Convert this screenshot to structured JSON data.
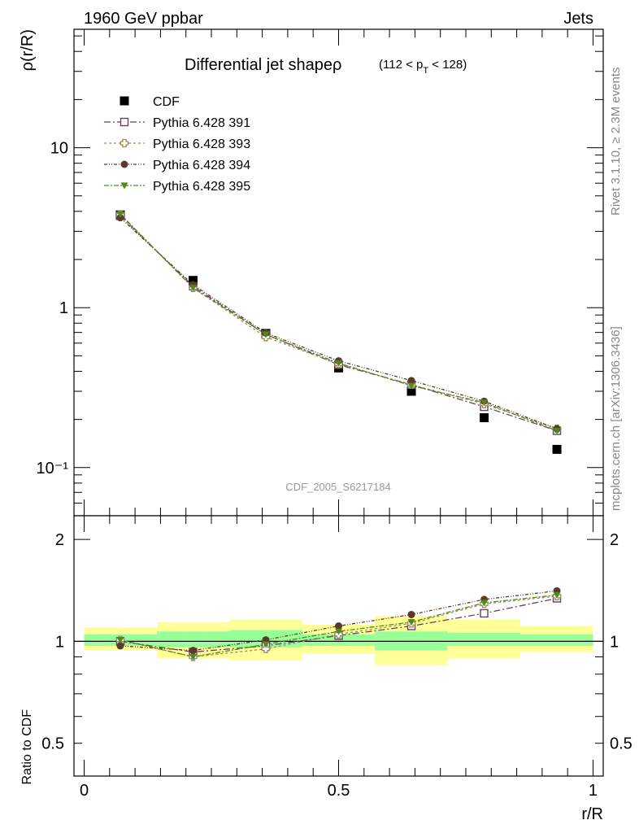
{
  "header": {
    "energy": "1960 GeV ppbar",
    "process": "Jets",
    "side_top": "Rivet 3.1.10, ≥ 2.3M events",
    "side_bottom": "mcplots.cern.ch [arXiv:1306.3436]"
  },
  "colors": {
    "cdf": "#000000",
    "p391": "#6b3f5a",
    "p393": "#9c8a5a",
    "p394": "#5a3a28",
    "p395": "#4e8a1e",
    "band_outer": "#ffff99",
    "band_inner": "#99ff99"
  },
  "chart_data": [
    {
      "type": "scatter",
      "title": "Differential jet shapeρ",
      "title_cut": "(112 < p",
      "title_cut_sub": "T",
      "title_cut_end": " < 128)",
      "watermark": "CDF_2005_S6217184",
      "ylabel": "ρ(r/R)",
      "yscale": "log",
      "xlim": [
        -0.02,
        1.02
      ],
      "ylim": [
        0.05,
        55
      ],
      "ytick_labels": [
        {
          "v": 10,
          "label": "10"
        },
        {
          "v": 1,
          "label": "1"
        },
        {
          "v": 0.1,
          "label": "10⁻¹"
        }
      ],
      "legend_position": "top-left",
      "x": [
        0.071,
        0.214,
        0.357,
        0.5,
        0.643,
        0.786,
        0.929
      ],
      "series": [
        {
          "name": "CDF",
          "key": "cdf",
          "marker": "square",
          "values": [
            3.8,
            1.48,
            0.69,
            0.42,
            0.3,
            0.205,
            0.13
          ]
        },
        {
          "name": "Pythia 6.428 391",
          "key": "p391",
          "marker": "open-square",
          "values": [
            3.75,
            1.36,
            0.68,
            0.44,
            0.33,
            0.24,
            0.17
          ]
        },
        {
          "name": "Pythia 6.428 393",
          "key": "p393",
          "marker": "open-cross",
          "values": [
            3.8,
            1.33,
            0.655,
            0.445,
            0.33,
            0.25,
            0.175
          ]
        },
        {
          "name": "Pythia 6.428 394",
          "key": "p394",
          "marker": "circle",
          "values": [
            3.65,
            1.39,
            0.695,
            0.465,
            0.35,
            0.26,
            0.175
          ]
        },
        {
          "name": "Pythia 6.428 395",
          "key": "p395",
          "marker": "triangle-down",
          "values": [
            3.85,
            1.33,
            0.68,
            0.45,
            0.325,
            0.255,
            0.17
          ]
        }
      ]
    },
    {
      "type": "scatter",
      "ylabel": "Ratio to CDF",
      "xlabel": "r/R",
      "yscale": "log",
      "xlim": [
        -0.02,
        1.02
      ],
      "ylim": [
        0.4,
        2.35
      ],
      "ytick_labels": [
        {
          "v": 2,
          "label": "2"
        },
        {
          "v": 1,
          "label": "1"
        },
        {
          "v": 0.5,
          "label": "0.5"
        }
      ],
      "xtick_labels": [
        {
          "v": 0,
          "label": "0"
        },
        {
          "v": 0.5,
          "label": "0.5"
        },
        {
          "v": 1,
          "label": "1"
        }
      ],
      "bands": [
        {
          "x0": 0.0,
          "x1": 0.143,
          "outer": [
            0.94,
            1.1
          ],
          "inner": [
            0.97,
            1.05
          ]
        },
        {
          "x0": 0.143,
          "x1": 0.286,
          "outer": [
            0.89,
            1.14
          ],
          "inner": [
            0.96,
            1.07
          ]
        },
        {
          "x0": 0.286,
          "x1": 0.429,
          "outer": [
            0.88,
            1.16
          ],
          "inner": [
            0.96,
            1.08
          ]
        },
        {
          "x0": 0.429,
          "x1": 0.571,
          "outer": [
            0.92,
            1.12
          ],
          "inner": [
            0.97,
            1.05
          ]
        },
        {
          "x0": 0.571,
          "x1": 0.714,
          "outer": [
            0.85,
            1.19
          ],
          "inner": [
            0.94,
            1.07
          ]
        },
        {
          "x0": 0.714,
          "x1": 0.857,
          "outer": [
            0.89,
            1.16
          ],
          "inner": [
            0.97,
            1.06
          ]
        },
        {
          "x0": 0.857,
          "x1": 1.0,
          "outer": [
            0.93,
            1.11
          ],
          "inner": [
            0.97,
            1.05
          ]
        }
      ],
      "x": [
        0.071,
        0.214,
        0.357,
        0.5,
        0.643,
        0.786,
        0.929
      ],
      "series": [
        {
          "name": "Pythia 6.428 391",
          "key": "p391",
          "marker": "open-square",
          "values": [
            1.0,
            0.93,
            0.97,
            1.04,
            1.11,
            1.21,
            1.34
          ]
        },
        {
          "name": "Pythia 6.428 393",
          "key": "p393",
          "marker": "open-cross",
          "values": [
            1.01,
            0.9,
            0.95,
            1.05,
            1.13,
            1.29,
            1.36
          ]
        },
        {
          "name": "Pythia 6.428 394",
          "key": "p394",
          "marker": "circle",
          "values": [
            0.97,
            0.94,
            1.01,
            1.11,
            1.2,
            1.33,
            1.41
          ]
        },
        {
          "name": "Pythia 6.428 395",
          "key": "p395",
          "marker": "triangle-down",
          "values": [
            1.01,
            0.9,
            0.98,
            1.07,
            1.14,
            1.3,
            1.37
          ]
        }
      ]
    }
  ]
}
